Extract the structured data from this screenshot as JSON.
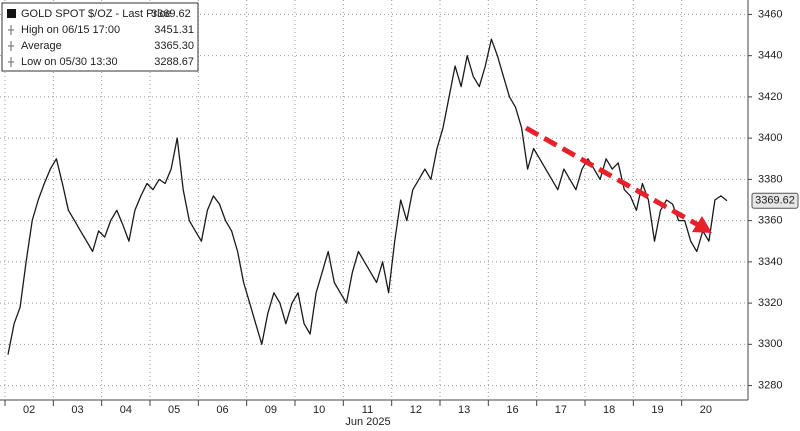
{
  "chart_data": {
    "type": "line",
    "x_label": "Jun 2025",
    "categories": [
      null,
      null,
      null,
      null,
      "02",
      null,
      null,
      null,
      null,
      null,
      null,
      null,
      "03",
      null,
      null,
      null,
      null,
      null,
      null,
      null,
      "04",
      null,
      null,
      null,
      null,
      null,
      null,
      null,
      "05",
      null,
      null,
      null,
      null,
      null,
      null,
      null,
      "06",
      null,
      null,
      null,
      null,
      null,
      null,
      null,
      "09",
      null,
      null,
      null,
      null,
      null,
      null,
      null,
      "10",
      null,
      null,
      null,
      null,
      null,
      null,
      null,
      "11",
      null,
      null,
      null,
      null,
      null,
      null,
      null,
      "12",
      null,
      null,
      null,
      null,
      null,
      null,
      null,
      "13",
      null,
      null,
      null,
      null,
      null,
      null,
      null,
      "16",
      null,
      null,
      null,
      null,
      null,
      null,
      null,
      "17",
      null,
      null,
      null,
      null,
      null,
      null,
      null,
      "18",
      null,
      null,
      null,
      null,
      null,
      null,
      null,
      "19",
      null,
      null,
      null,
      null,
      null,
      null,
      null,
      "20",
      null,
      null,
      null
    ],
    "series": [
      {
        "name": "GOLD SPOT $/OZ - Last Price",
        "color": "#1a1a1a",
        "values": [
          3295,
          3310,
          3318,
          3340,
          3360,
          3370,
          3378,
          3385,
          3390,
          3378,
          3365,
          3360,
          3355,
          3350,
          3345,
          3355,
          3352,
          3360,
          3365,
          3358,
          3350,
          3365,
          3372,
          3378,
          3375,
          3380,
          3378,
          3385,
          3400,
          3375,
          3360,
          3355,
          3350,
          3365,
          3372,
          3368,
          3360,
          3355,
          3345,
          3330,
          3320,
          3310,
          3300,
          3315,
          3325,
          3320,
          3310,
          3320,
          3325,
          3310,
          3305,
          3325,
          3335,
          3345,
          3330,
          3325,
          3320,
          3335,
          3345,
          3340,
          3335,
          3330,
          3340,
          3325,
          3350,
          3370,
          3360,
          3375,
          3380,
          3385,
          3380,
          3395,
          3405,
          3420,
          3435,
          3425,
          3440,
          3430,
          3425,
          3435,
          3448,
          3440,
          3430,
          3420,
          3415,
          3405,
          3385,
          3395,
          3390,
          3385,
          3380,
          3375,
          3385,
          3380,
          3375,
          3385,
          3390,
          3385,
          3380,
          3390,
          3385,
          3388,
          3375,
          3372,
          3365,
          3378,
          3370,
          3350,
          3365,
          3370,
          3368,
          3360,
          3360,
          3350,
          3345,
          3355,
          3350,
          3370,
          3372,
          3369.62
        ]
      }
    ],
    "last_price": 3369.62,
    "stats": [
      {
        "label": "High on 06/15 17:00",
        "value": "3451.31"
      },
      {
        "label": "Average",
        "value": "3365.30"
      },
      {
        "label": "Low on 05/30 13:30",
        "value": "3288.67"
      }
    ],
    "ylim": [
      3273,
      3467
    ],
    "yticks": [
      3280,
      3300,
      3320,
      3340,
      3360,
      3380,
      3400,
      3420,
      3440,
      3460
    ],
    "grid": true
  }
}
